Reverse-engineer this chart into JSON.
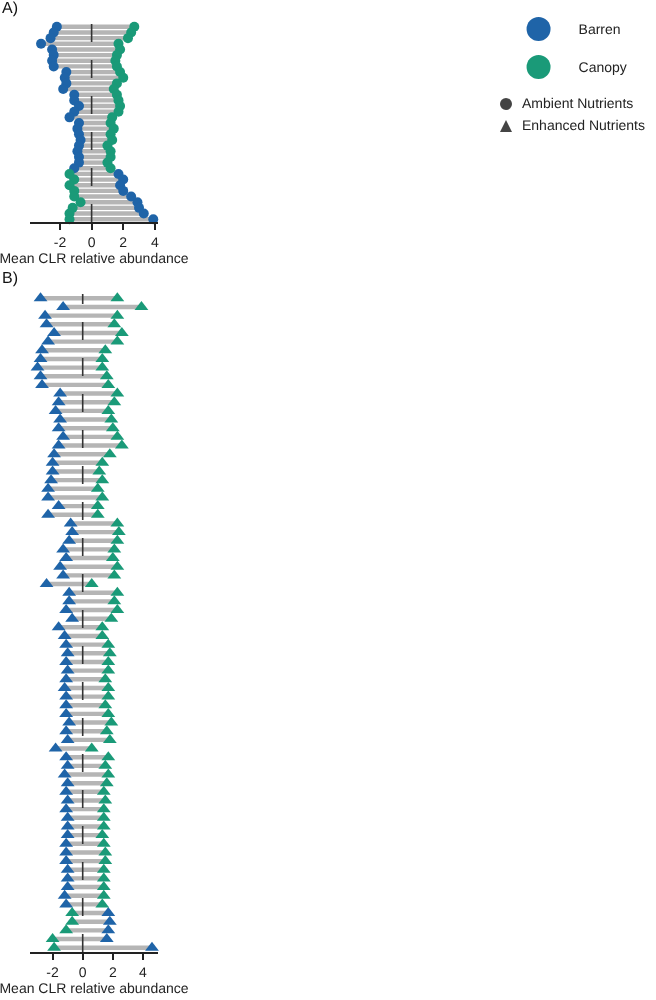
{
  "chart_data": [
    {
      "type": "scatter",
      "title": "A)",
      "orientation": "horizontal",
      "marker": "circle",
      "legend": "top right",
      "tick_labels": "x",
      "xlabel": "Mean CLR relative abundance",
      "xlim": [
        -3.9,
        4.2
      ],
      "xticks": [
        -2,
        0,
        2,
        4
      ],
      "categories": [
        null,
        null,
        null,
        null,
        null,
        null,
        null,
        null,
        null,
        null,
        null,
        null,
        null,
        null,
        null,
        null,
        null,
        null,
        null,
        null,
        null,
        null,
        null,
        null,
        null,
        null,
        null,
        null,
        null,
        null,
        null,
        null,
        null,
        null,
        null
      ],
      "series": [
        {
          "name": "Barren",
          "color": "#1f64a8",
          "values": [
            -2.2,
            -2.4,
            -2.6,
            -3.2,
            -2.5,
            -2.4,
            -2.5,
            -2.4,
            -1.6,
            -1.7,
            -1.6,
            -1.8,
            -1.1,
            -1.1,
            -0.8,
            -1.1,
            -1.4,
            -0.8,
            -0.9,
            -0.8,
            -0.7,
            -0.8,
            -0.9,
            -0.8,
            -0.8,
            -1.1,
            1.7,
            2.0,
            1.8,
            2.0,
            2.5,
            2.9,
            3.0,
            3.3,
            3.9
          ]
        },
        {
          "name": "Canopy",
          "color": "#1a9a78",
          "values": [
            2.7,
            2.5,
            2.3,
            1.7,
            1.8,
            1.6,
            1.5,
            1.6,
            1.8,
            2.0,
            1.6,
            1.4,
            1.6,
            1.7,
            1.8,
            1.7,
            1.3,
            1.2,
            1.4,
            1.2,
            1.3,
            1.0,
            1.2,
            1.2,
            1.0,
            1.2,
            -1.4,
            -1.1,
            -1.4,
            -1.1,
            -1.1,
            -0.7,
            -1.2,
            -1.4,
            -1.4
          ]
        }
      ],
      "ref_lines": [
        {
          "axis": "x",
          "value": 0,
          "line_style": "dashed"
        }
      ],
      "annotations": [
        "Ambient Nutrients",
        "Enhanced Nutrients"
      ]
    },
    {
      "type": "scatter",
      "title": "B)",
      "orientation": "horizontal",
      "marker": "triangle",
      "tick_labels": "x",
      "xlabel": "Mean CLR relative abundance",
      "xlim": [
        -3.5,
        5
      ],
      "xticks": [
        -2,
        0,
        2,
        4
      ],
      "categories": [
        null,
        null,
        null,
        null,
        null,
        null,
        null,
        null,
        null,
        null,
        null,
        null,
        null,
        null,
        null,
        null,
        null,
        null,
        null,
        null,
        null,
        null,
        null,
        null,
        null,
        null,
        null,
        null,
        null,
        null,
        null,
        null,
        null,
        null,
        null,
        null,
        null,
        null,
        null,
        null,
        null,
        null,
        null,
        null,
        null,
        null,
        null,
        null,
        null,
        null,
        null,
        null,
        null,
        null,
        null,
        null,
        null,
        null,
        null,
        null,
        null,
        null,
        null,
        null,
        null,
        null,
        null,
        null,
        null,
        null,
        null,
        null,
        null,
        null,
        null,
        null
      ],
      "series": [
        {
          "color": "#1f64a8",
          "values": [
            -2.8,
            -1.3,
            -2.5,
            -2.4,
            -1.9,
            -2.3,
            -2.7,
            -2.8,
            -3.0,
            -2.8,
            -2.7,
            -1.5,
            -1.6,
            -1.8,
            -1.5,
            -1.6,
            -1.3,
            -1.6,
            -1.9,
            -2.0,
            -2.0,
            -2.1,
            -2.3,
            -2.3,
            -1.6,
            -2.3,
            -0.8,
            -0.7,
            -0.9,
            -1.3,
            -1.1,
            -1.5,
            -1.3,
            -2.4,
            -0.9,
            -0.9,
            -1.1,
            -0.7,
            -1.6,
            -1.2,
            -1.1,
            -1.0,
            -1.1,
            -1.0,
            -1.1,
            -1.2,
            -1.1,
            -1.1,
            -1.1,
            -0.9,
            -1.1,
            -1.0,
            -1.8,
            -1.1,
            -1.0,
            -1.2,
            -1.0,
            -1.1,
            -1.0,
            -1.1,
            -1.0,
            -1.0,
            -1.0,
            -1.1,
            -1.1,
            -1.1,
            -1.0,
            -1.0,
            -1.0,
            -1.2,
            -1.1,
            1.7,
            1.8,
            1.7,
            1.6,
            4.6
          ]
        },
        {
          "color": "#1a9a78",
          "values": [
            2.3,
            3.9,
            2.3,
            2.1,
            2.6,
            2.3,
            1.5,
            1.3,
            1.3,
            1.6,
            1.7,
            2.3,
            2.1,
            1.7,
            1.9,
            2.0,
            2.3,
            2.6,
            1.8,
            1.3,
            1.1,
            1.3,
            1.0,
            1.3,
            1.0,
            1.0,
            2.3,
            2.4,
            2.3,
            2.1,
            2.0,
            2.3,
            2.1,
            0.6,
            2.3,
            2.1,
            2.3,
            1.9,
            1.3,
            1.3,
            1.7,
            1.8,
            1.7,
            1.7,
            1.5,
            1.7,
            1.7,
            1.5,
            1.7,
            1.9,
            1.6,
            1.8,
            0.6,
            1.7,
            1.5,
            1.7,
            1.6,
            1.4,
            1.5,
            1.4,
            1.4,
            1.4,
            1.3,
            1.4,
            1.5,
            1.5,
            1.4,
            1.4,
            1.4,
            1.4,
            1.3,
            -0.7,
            -0.7,
            -1.1,
            -2.0,
            -1.9
          ]
        }
      ],
      "ref_lines": [
        {
          "axis": "x",
          "value": 0,
          "line_style": "dashed"
        }
      ]
    }
  ]
}
